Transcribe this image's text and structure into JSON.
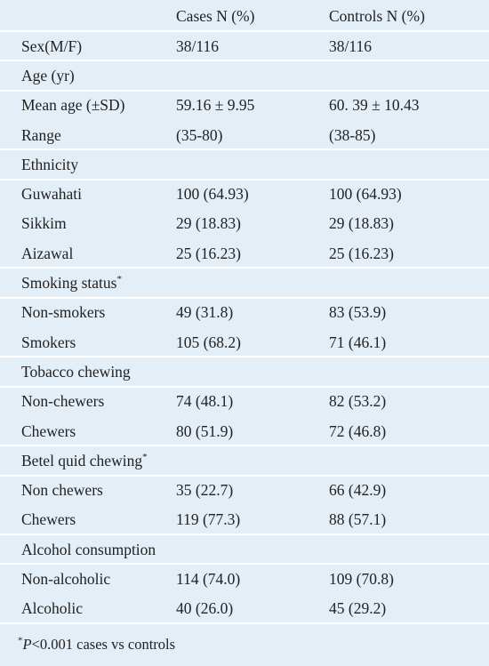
{
  "table": {
    "columns": [
      "Cases N (%)",
      "Controls N (%)"
    ],
    "rows": [
      [
        "Sex(M/F)",
        "38/116",
        "38/116"
      ]
    ],
    "groups": [
      {
        "title": "Age (yr)",
        "rows": [
          [
            "Mean age (±SD)",
            "59.16 ± 9.95",
            "60. 39 ± 10.43"
          ],
          [
            "Range",
            "(35-80)",
            "(38-85)"
          ]
        ]
      },
      {
        "title": "Ethnicity",
        "rows": [
          [
            "Guwahati",
            "100 (64.93)",
            "100 (64.93)"
          ],
          [
            "Sikkim",
            "29 (18.83)",
            "29 (18.83)"
          ],
          [
            "Aizawal",
            "25 (16.23)",
            "25 (16.23)"
          ]
        ]
      },
      {
        "title": "Smoking status",
        "note": "*",
        "rows": [
          [
            "Non-smokers",
            "49 (31.8)",
            "83 (53.9)"
          ],
          [
            "Smokers",
            "105 (68.2)",
            "71 (46.1)"
          ]
        ]
      },
      {
        "title": "Tobacco chewing",
        "rows": [
          [
            "Non-chewers",
            "74 (48.1)",
            "82 (53.2)"
          ],
          [
            "Chewers",
            "80 (51.9)",
            "72 (46.8)"
          ]
        ]
      },
      {
        "title": "Betel quid chewing",
        "note": "*",
        "rows": [
          [
            "Non chewers",
            "35 (22.7)",
            "66 (42.9)"
          ],
          [
            "Chewers",
            "119 (77.3)",
            "88 (57.1)"
          ]
        ]
      },
      {
        "title": "Alcohol consumption",
        "rows": [
          [
            "Non-alcoholic",
            "114 (74.0)",
            "109 (70.8)"
          ],
          [
            "Alcoholic",
            "40 (26.0)",
            "45 (29.2)"
          ]
        ]
      }
    ],
    "footnote": {
      "mark": "*",
      "italic": "P",
      "text": "<0.001 cases vs controls"
    }
  }
}
